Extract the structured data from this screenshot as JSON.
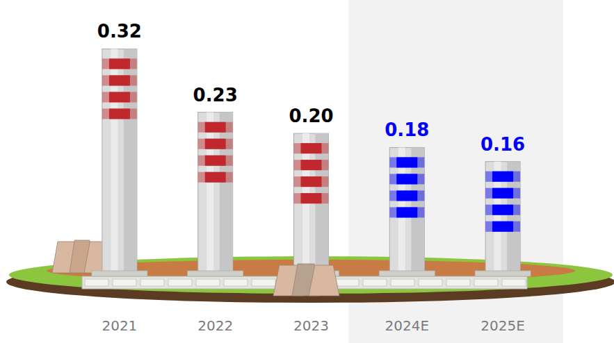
{
  "chart_data": {
    "type": "bar",
    "categories": [
      "2021",
      "2022",
      "2023",
      "2024E",
      "2025E"
    ],
    "values": [
      0.32,
      0.23,
      0.2,
      0.18,
      0.16
    ],
    "value_labels": [
      "0.32",
      "0.23",
      "0.20",
      "0.18",
      "0.16"
    ],
    "colors": [
      "#c0282d",
      "#c0282d",
      "#c0282d",
      "#0000ff",
      "#0000ff"
    ],
    "ylim": [
      0,
      0.35
    ],
    "data_labels": true,
    "tick_labels": "x"
  }
}
